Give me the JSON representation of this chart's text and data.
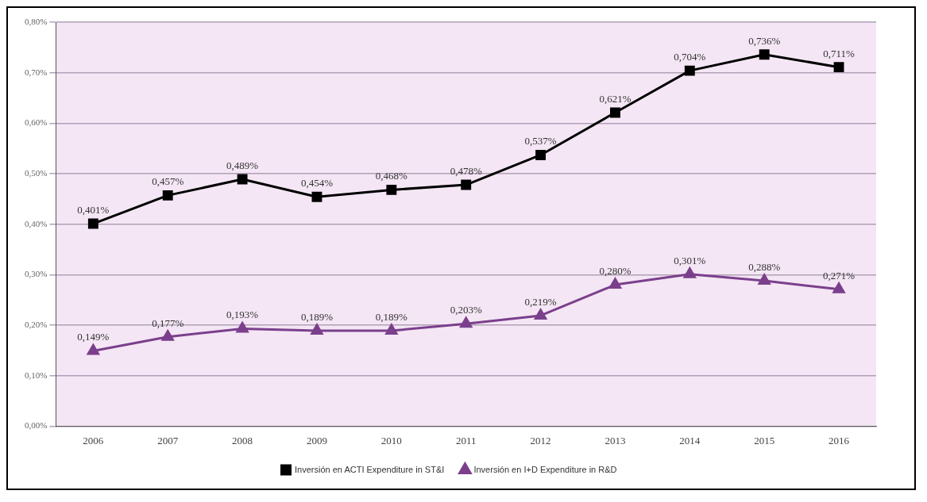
{
  "chart_data": {
    "type": "line",
    "categories": [
      "2006",
      "2007",
      "2008",
      "2009",
      "2010",
      "2011",
      "2012",
      "2013",
      "2014",
      "2015",
      "2016"
    ],
    "series": [
      {
        "name": "Inversión en ACTI Expenditure in ST&I",
        "color": "#000000",
        "marker": "square",
        "values": [
          0.401,
          0.457,
          0.489,
          0.454,
          0.468,
          0.478,
          0.537,
          0.621,
          0.704,
          0.736,
          0.711
        ],
        "value_labels": [
          "0,401%",
          "0,457%",
          "0,489%",
          "0,454%",
          "0,468%",
          "0,478%",
          "0,537%",
          "0,621%",
          "0,704%",
          "0,736%",
          "0,711%"
        ]
      },
      {
        "name": "Inversión en I+D Expenditure in R&D",
        "color": "#7b3f8c",
        "marker": "triangle",
        "values": [
          0.149,
          0.177,
          0.193,
          0.189,
          0.189,
          0.203,
          0.219,
          0.28,
          0.301,
          0.288,
          0.271
        ],
        "value_labels": [
          "0,149%",
          "0,177%",
          "0,193%",
          "0,189%",
          "0,189%",
          "0,203%",
          "0,219%",
          "0,280%",
          "0,301%",
          "0,288%",
          "0,271%"
        ]
      }
    ],
    "ylim": [
      0,
      0.8
    ],
    "yticks": [
      {
        "value": 0,
        "label": "0,00%"
      },
      {
        "value": 0.1,
        "label": "0,10%"
      },
      {
        "value": 0.2,
        "label": "0,20%"
      },
      {
        "value": 0.3,
        "label": "0,30%"
      },
      {
        "value": 0.4,
        "label": "0,40%"
      },
      {
        "value": 0.5,
        "label": "0,50%"
      },
      {
        "value": 0.6,
        "label": "0,60%"
      },
      {
        "value": 0.7,
        "label": "0,70%"
      },
      {
        "value": 0.8,
        "label": "0,80%"
      }
    ],
    "grid": "y",
    "legend": "bottom",
    "line_style": "solid"
  }
}
